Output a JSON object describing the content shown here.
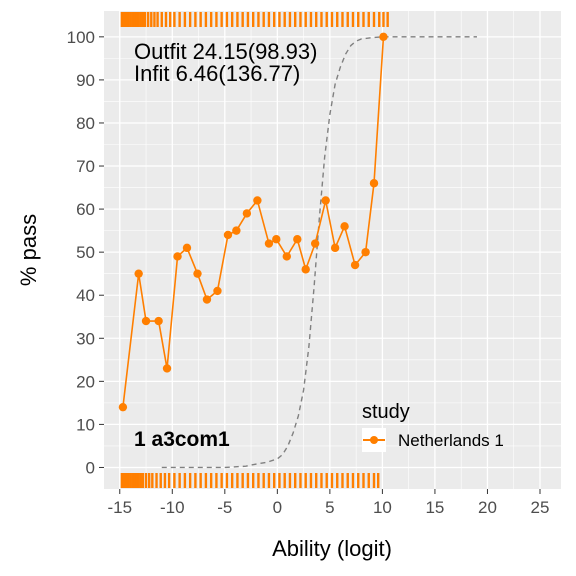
{
  "chart_data": {
    "type": "line",
    "xlabel": "Ability (logit)",
    "ylabel": "% pass",
    "xlim": [
      -16.5,
      27
    ],
    "ylim": [
      -5,
      106
    ],
    "x_ticks": [
      -15,
      -10,
      -5,
      0,
      5,
      10,
      15,
      20,
      25
    ],
    "y_ticks": [
      0,
      10,
      20,
      30,
      40,
      50,
      60,
      70,
      80,
      90,
      100
    ],
    "x_tick_labels": [
      "-15",
      "-10",
      "-5",
      "0",
      "5",
      "10",
      "15",
      "20",
      "25"
    ],
    "y_tick_labels": [
      "0",
      "10",
      "20",
      "30",
      "40",
      "50",
      "60",
      "70",
      "80",
      "90",
      "100"
    ],
    "grid": true,
    "background": "#ebebeb",
    "annotations": {
      "outfit": "Outfit 24.15(98.93)",
      "infit": "Infit  6.46(136.77)",
      "item": "1  a3com1"
    },
    "legend": {
      "title": "study",
      "position": "bottom-right",
      "entries": [
        {
          "name": "Netherlands 1",
          "color": "#ff7f00"
        }
      ]
    },
    "series": [
      {
        "name": "Netherlands 1",
        "color": "#ff7f00",
        "x": [
          -14.7,
          -13.2,
          -12.5,
          -11.3,
          -10.5,
          -9.5,
          -8.6,
          -7.6,
          -6.7,
          -5.7,
          -4.7,
          -3.9,
          -2.9,
          -1.9,
          -0.8,
          -0.1,
          0.9,
          1.9,
          2.7,
          3.6,
          4.6,
          5.5,
          6.4,
          7.4,
          8.4,
          9.2,
          10.1
        ],
        "y": [
          14,
          45,
          34,
          34,
          23,
          49,
          51,
          45,
          39,
          41,
          54,
          55,
          59,
          62,
          52,
          53,
          49,
          53,
          46,
          52,
          62,
          51,
          56,
          47,
          50,
          66,
          100
        ]
      },
      {
        "name": "expected",
        "style": "dashed",
        "color": "#808080",
        "x": [
          -11,
          -9,
          -7,
          -5,
          -3,
          -2,
          -1,
          0,
          0.5,
          1,
          1.5,
          2,
          2.5,
          3,
          3.5,
          4,
          4.5,
          5,
          5.5,
          6,
          6.5,
          7,
          7.5,
          8,
          9,
          10,
          12,
          15,
          19
        ],
        "y": [
          0,
          0,
          0,
          0,
          0.3,
          0.8,
          1.2,
          2,
          3,
          5,
          8,
          12,
          18,
          28,
          42,
          58,
          72,
          82,
          89,
          93,
          96,
          98,
          99,
          99.5,
          99.8,
          100,
          100,
          100,
          100
        ]
      }
    ],
    "rug": {
      "color": "#ff7f00",
      "top": [
        -14.8,
        -14.6,
        -14.4,
        -14.2,
        -14.0,
        -13.8,
        -13.6,
        -13.4,
        -13.2,
        -13.0,
        -12.8,
        -12.6,
        -12.3,
        -12.0,
        -11.7,
        -11.4,
        -11.0,
        -10.6,
        -10.2,
        -9.8,
        -9.3,
        -8.8,
        -8.3,
        -7.8,
        -7.3,
        -6.8,
        -6.3,
        -5.8,
        -5.3,
        -4.8,
        -4.3,
        -3.8,
        -3.3,
        -2.8,
        -2.3,
        -1.8,
        -1.3,
        -0.8,
        -0.3,
        0.2,
        0.7,
        1.2,
        1.7,
        2.2,
        2.7,
        3.2,
        3.7,
        4.2,
        4.7,
        5.2,
        5.7,
        6.2,
        6.7,
        7.2,
        7.7,
        8.2,
        8.7,
        9.2,
        9.7,
        10.1,
        10.5
      ],
      "bottom": [
        -14.8,
        -14.6,
        -14.4,
        -14.2,
        -14.0,
        -13.8,
        -13.6,
        -13.4,
        -13.2,
        -13.0,
        -12.8,
        -12.5,
        -12.2,
        -11.9,
        -11.5,
        -11.1,
        -10.7,
        -10.3,
        -9.8,
        -9.3,
        -8.8,
        -8.3,
        -7.8,
        -7.3,
        -6.8,
        -6.3,
        -5.8,
        -5.3,
        -4.8,
        -4.3,
        -3.8,
        -3.3,
        -2.8,
        -2.3,
        -1.8,
        -1.3,
        -0.8,
        -0.3,
        0.2,
        0.7,
        1.2,
        1.7,
        2.2,
        2.7,
        3.2,
        3.7,
        4.2,
        4.7,
        5.2,
        5.7,
        6.2,
        6.7,
        7.2,
        7.7,
        8.2,
        8.7,
        9.2,
        9.6
      ]
    }
  }
}
